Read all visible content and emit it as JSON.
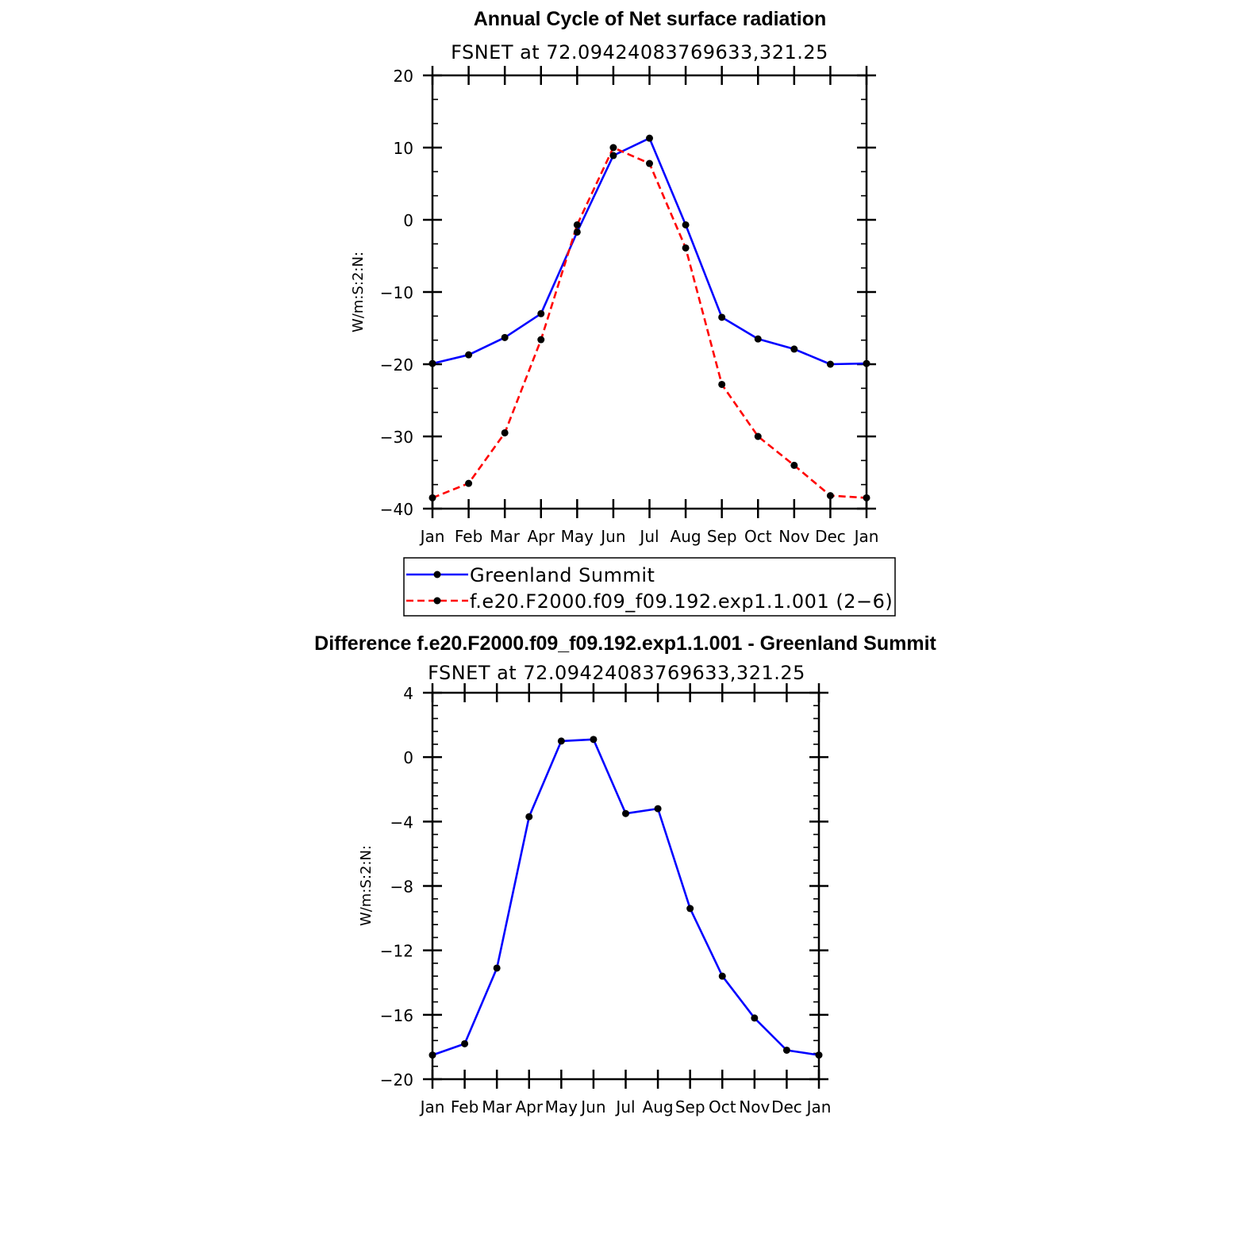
{
  "chart_data": [
    {
      "type": "line",
      "title": "Annual Cycle of Net surface radiation",
      "subtitle": "FSNET at 72.09424083769633,321.25",
      "ylabel": "W/m:S:2:N:",
      "xlabel": "",
      "categories": [
        "Jan",
        "Feb",
        "Mar",
        "Apr",
        "May",
        "Jun",
        "Jul",
        "Aug",
        "Sep",
        "Oct",
        "Nov",
        "Dec",
        "Jan"
      ],
      "ylim": [
        -40,
        20
      ],
      "yticks": [
        20,
        10,
        0,
        -10,
        -20,
        -30,
        -40
      ],
      "yticklabels": [
        "20",
        "10",
        "0",
        "−10",
        "−20",
        "−30",
        "−40"
      ],
      "grid": false,
      "legend": "below",
      "series": [
        {
          "name": "Greenland Summit",
          "color": "#0000ff",
          "dash": "solid",
          "values": [
            -19.9,
            -18.7,
            -16.3,
            -13.0,
            -1.7,
            8.9,
            11.3,
            -0.7,
            -13.5,
            -16.5,
            -17.9,
            -20.0,
            -19.9
          ]
        },
        {
          "name": "f.e20.F2000.f09_f09.192.exp1.1.001 (2−6)",
          "color": "#ff0000",
          "dash": "dashed",
          "values": [
            -38.5,
            -36.5,
            -29.5,
            -16.6,
            -0.7,
            10.0,
            7.8,
            -3.9,
            -22.8,
            -30.0,
            -34.0,
            -38.2,
            -38.5
          ]
        }
      ]
    },
    {
      "type": "line",
      "title": "Difference f.e20.F2000.f09_f09.192.exp1.1.001 - Greenland Summit",
      "subtitle": "FSNET at 72.09424083769633,321.25",
      "ylabel": "W/m:S:2:N:",
      "xlabel": "",
      "categories": [
        "Jan",
        "Feb",
        "Mar",
        "Apr",
        "May",
        "Jun",
        "Jul",
        "Aug",
        "Sep",
        "Oct",
        "Nov",
        "Dec",
        "Jan"
      ],
      "ylim": [
        -20,
        4
      ],
      "yticks": [
        4,
        0,
        -4,
        -8,
        -12,
        -16,
        -20
      ],
      "yticklabels": [
        "4",
        "0",
        "−4",
        "−8",
        "−12",
        "−16",
        "−20"
      ],
      "grid": false,
      "series": [
        {
          "color": "#0000ff",
          "dash": "solid",
          "values": [
            -18.5,
            -17.8,
            -13.1,
            -3.7,
            1.0,
            1.1,
            -3.5,
            -3.2,
            -9.4,
            -13.6,
            -16.2,
            -18.2,
            -18.5
          ]
        }
      ]
    }
  ]
}
